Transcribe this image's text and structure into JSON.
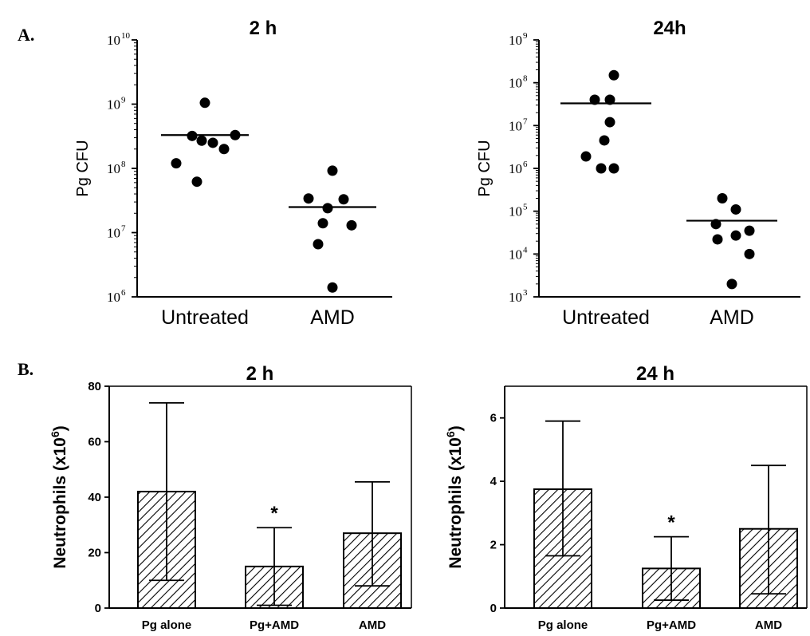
{
  "panel_labels": [
    "A.",
    "B."
  ],
  "colors": {
    "ink": "#000000",
    "background": "#ffffff"
  },
  "chart_data": [
    {
      "panel": "A.",
      "type": "scatter",
      "title": "2 h",
      "ylabel": "Pg CFU",
      "yscale": "log",
      "ylim": [
        1000000,
        10000000000
      ],
      "ytick_exponents": [
        "6",
        "7",
        "8",
        "9",
        "10"
      ],
      "categories": [
        "Untreated",
        "AMD"
      ],
      "points": [
        [
          1050000000,
          320000000,
          270000000,
          330000000,
          250000000,
          200000000,
          120000000,
          62000000
        ],
        [
          92000000,
          34000000,
          24000000,
          33000000,
          14000000,
          13000000,
          6600000,
          1400000
        ]
      ],
      "medians": [
        330000000,
        25000000
      ]
    },
    {
      "panel": "A.",
      "type": "scatter",
      "title": "24h",
      "ylabel": "Pg CFU",
      "yscale": "log",
      "ylim": [
        1000,
        1000000000
      ],
      "ytick_exponents": [
        "3",
        "4",
        "5",
        "6",
        "7",
        "8",
        "9"
      ],
      "categories": [
        "Untreated",
        "AMD"
      ],
      "points": [
        [
          150000000,
          40000000,
          40000000,
          12000000,
          4500000,
          1900000,
          1000000,
          1000000
        ],
        [
          200000,
          110000,
          50000,
          35000,
          27000,
          22000,
          10000,
          2000
        ]
      ],
      "medians": [
        33000000,
        60000
      ]
    },
    {
      "panel": "B.",
      "type": "bar",
      "title": "2 h",
      "ylabel": "Neutrophils (x10",
      "ylabel_sup": "6",
      "ylabel_close": ")",
      "ylim": [
        0,
        80
      ],
      "yticks": [
        "0",
        "20",
        "40",
        "60",
        "80"
      ],
      "categories": [
        "Pg alone",
        "Pg+AMD",
        "AMD"
      ],
      "values": [
        42,
        15,
        27
      ],
      "err_high": [
        74,
        29,
        45.5
      ],
      "err_low": [
        10,
        1,
        8
      ],
      "significance": [
        "",
        "*",
        ""
      ]
    },
    {
      "panel": "B.",
      "type": "bar",
      "title": "24 h",
      "ylabel": "Neutrophils (x10",
      "ylabel_sup": "6",
      "ylabel_close": ")",
      "ylim": [
        0,
        7
      ],
      "yticks": [
        "0",
        "2",
        "4",
        "6"
      ],
      "categories": [
        "Pg alone",
        "Pg+AMD",
        "AMD"
      ],
      "values": [
        3.75,
        1.25,
        2.5
      ],
      "err_high": [
        5.9,
        2.25,
        4.5
      ],
      "err_low": [
        1.65,
        0.25,
        0.45
      ],
      "significance": [
        "",
        "*",
        ""
      ]
    }
  ]
}
